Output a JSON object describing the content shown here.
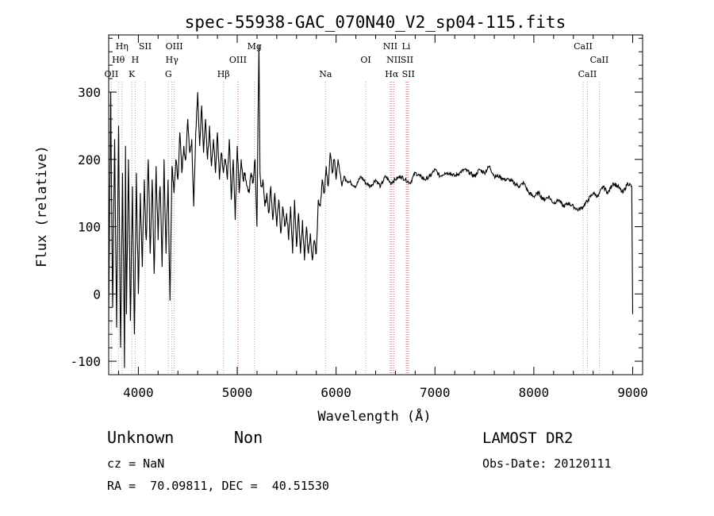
{
  "chart_data": {
    "type": "line",
    "title": "spec-55938-GAC_070N40_V2_sp04-115.fits",
    "xlabel": "Wavelength (Å)",
    "ylabel": "Flux (relative)",
    "xlim": [
      3700,
      9100
    ],
    "ylim": [
      -120,
      385
    ],
    "xticks": [
      4000,
      5000,
      6000,
      7000,
      8000,
      9000
    ],
    "yticks": [
      -100,
      0,
      100,
      200,
      300
    ],
    "grid": false,
    "series": [
      {
        "x": [
          3700,
          3720,
          3740,
          3760,
          3780,
          3800,
          3820,
          3840,
          3860,
          3870,
          3880,
          3900,
          3920,
          3940,
          3960,
          3980,
          4000,
          4020,
          4040,
          4060,
          4080,
          4100,
          4120,
          4140,
          4160,
          4180,
          4200,
          4220,
          4240,
          4260,
          4280,
          4300,
          4320,
          4340,
          4360,
          4380,
          4400,
          4420,
          4440,
          4460,
          4480,
          4500,
          4520,
          4540,
          4560,
          4580,
          4600,
          4620,
          4640,
          4660,
          4680,
          4700,
          4720,
          4740,
          4760,
          4780,
          4800,
          4820,
          4840,
          4860,
          4880,
          4900,
          4920,
          4940,
          4960,
          4980,
          5000,
          5020,
          5040,
          5060,
          5080,
          5100,
          5120,
          5140,
          5160,
          5180,
          5200,
          5210,
          5220,
          5230,
          5240,
          5260,
          5280,
          5300,
          5320,
          5340,
          5360,
          5380,
          5400,
          5420,
          5440,
          5460,
          5480,
          5500,
          5520,
          5540,
          5560,
          5580,
          5600,
          5620,
          5640,
          5660,
          5680,
          5700,
          5720,
          5740,
          5760,
          5780,
          5800,
          5820,
          5840,
          5860,
          5880,
          5900,
          5920,
          5940,
          5960,
          5980,
          6000,
          6020,
          6040,
          6060,
          6080,
          6100,
          6150,
          6200,
          6250,
          6300,
          6350,
          6400,
          6450,
          6500,
          6550,
          6600,
          6650,
          6700,
          6750,
          6800,
          6850,
          6900,
          6950,
          7000,
          7050,
          7100,
          7150,
          7200,
          7250,
          7300,
          7350,
          7400,
          7450,
          7500,
          7550,
          7600,
          7650,
          7700,
          7750,
          7800,
          7850,
          7900,
          7950,
          8000,
          8050,
          8100,
          8150,
          8200,
          8250,
          8300,
          8350,
          8400,
          8450,
          8500,
          8550,
          8600,
          8650,
          8700,
          8750,
          8800,
          8850,
          8900,
          8950,
          8990,
          9000
        ],
        "y": [
          -40,
          300,
          -20,
          230,
          -50,
          250,
          -80,
          180,
          -110,
          220,
          -30,
          200,
          -40,
          160,
          -60,
          180,
          0,
          150,
          40,
          170,
          80,
          200,
          60,
          170,
          30,
          190,
          80,
          160,
          40,
          200,
          60,
          170,
          -10,
          190,
          150,
          200,
          170,
          240,
          180,
          220,
          200,
          260,
          210,
          230,
          130,
          240,
          300,
          220,
          280,
          210,
          260,
          200,
          250,
          190,
          230,
          180,
          240,
          170,
          210,
          180,
          200,
          170,
          230,
          140,
          200,
          110,
          220,
          150,
          200,
          170,
          180,
          160,
          150,
          180,
          165,
          200,
          100,
          260,
          370,
          180,
          160,
          170,
          130,
          150,
          120,
          160,
          110,
          150,
          100,
          140,
          90,
          130,
          100,
          120,
          80,
          130,
          60,
          140,
          70,
          120,
          60,
          110,
          50,
          100,
          60,
          90,
          50,
          80,
          60,
          140,
          130,
          170,
          150,
          190,
          160,
          210,
          180,
          200,
          170,
          200,
          180,
          160,
          175,
          170,
          165,
          160,
          175,
          165,
          160,
          170,
          160,
          175,
          165,
          170,
          175,
          170,
          165,
          180,
          175,
          170,
          175,
          185,
          175,
          180,
          180,
          175,
          180,
          185,
          180,
          175,
          185,
          180,
          190,
          175,
          175,
          170,
          170,
          165,
          160,
          165,
          150,
          145,
          150,
          140,
          145,
          135,
          140,
          130,
          135,
          130,
          125,
          130,
          140,
          150,
          145,
          160,
          150,
          165,
          160,
          150,
          165,
          160,
          -30
        ]
      }
    ],
    "line_labels": [
      {
        "label": "Hη",
        "x": 3835,
        "row": 1,
        "color": "gray"
      },
      {
        "label": "Hθ",
        "x": 3798,
        "row": 2,
        "color": "gray"
      },
      {
        "label": "OII",
        "x": 3727,
        "row": 3,
        "color": "gray"
      },
      {
        "label": "SII",
        "x": 4069,
        "row": 1,
        "color": "gray"
      },
      {
        "label": "H",
        "x": 3968,
        "row": 2,
        "color": "gray"
      },
      {
        "label": "K",
        "x": 3934,
        "row": 3,
        "color": "gray"
      },
      {
        "label": "OIII",
        "x": 4363,
        "row": 1,
        "color": "gray"
      },
      {
        "label": "Hγ",
        "x": 4340,
        "row": 2,
        "color": "gray"
      },
      {
        "label": "G",
        "x": 4304,
        "row": 3,
        "color": "gray"
      },
      {
        "label": "Mg",
        "x": 5175,
        "row": 1,
        "color": "gray"
      },
      {
        "label": "OIII",
        "x": 5007,
        "row": 2,
        "color": "red"
      },
      {
        "label": "Hβ",
        "x": 4861,
        "row": 3,
        "color": "gray"
      },
      {
        "label": "Na",
        "x": 5893,
        "row": 3,
        "color": "gray"
      },
      {
        "label": "OI",
        "x": 6300,
        "row": 2,
        "color": "gray"
      },
      {
        "label": "NII",
        "x": 6548,
        "row": 1,
        "color": "red"
      },
      {
        "label": "NII",
        "x": 6583,
        "row": 2,
        "color": "red"
      },
      {
        "label": "Hα",
        "x": 6563,
        "row": 3,
        "color": "red"
      },
      {
        "label": "Li",
        "x": 6708,
        "row": 1,
        "color": "gray"
      },
      {
        "label": "SII",
        "x": 6717,
        "row": 2,
        "color": "red"
      },
      {
        "label": "SII",
        "x": 6731,
        "row": 3,
        "color": "red"
      },
      {
        "label": "CaII",
        "x": 8498,
        "row": 1,
        "color": "gray"
      },
      {
        "label": "CaII",
        "x": 8662,
        "row": 2,
        "color": "gray"
      },
      {
        "label": "CaII",
        "x": 8542,
        "row": 3,
        "color": "gray"
      }
    ],
    "colors": {
      "line": "#000000",
      "gray_marker": "#a9a9a9",
      "red_marker": "#e06060"
    }
  },
  "info": {
    "class": "Unknown",
    "subclass": "Non",
    "cz": "cz = NaN",
    "coords": "RA =  70.09811, DEC =  40.51530",
    "survey": "LAMOST DR2",
    "obs_date": "Obs-Date: 20120111"
  }
}
